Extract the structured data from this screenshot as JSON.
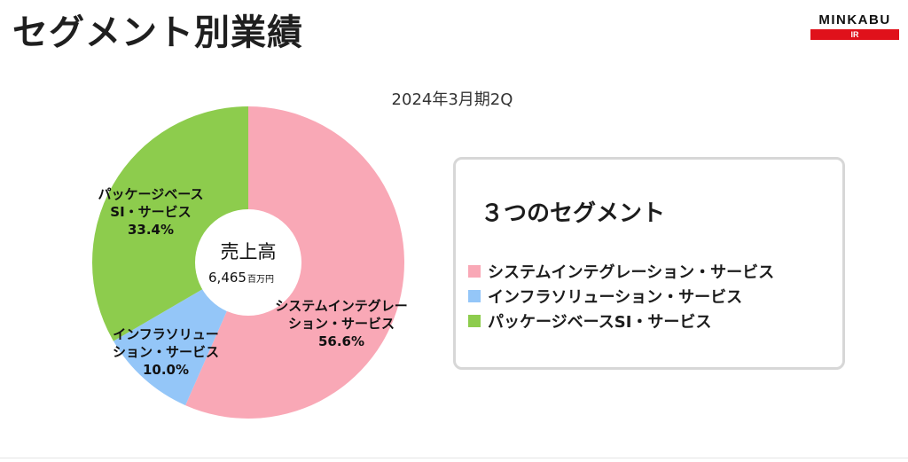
{
  "header": {
    "title": "セグメント別業績",
    "logo_text": "MINKABU",
    "logo_sub": "IR"
  },
  "chart_data": {
    "type": "pie",
    "style": "donut",
    "subtitle": "2024年3月期2Q",
    "center": {
      "title": "売上高",
      "value": "6,465",
      "unit": "百万円"
    },
    "slices": [
      {
        "label_lines": [
          "システムインテグレー",
          "ション・サービス"
        ],
        "value": 56.6,
        "value_label": "56.6%",
        "color": "#f9a8b6"
      },
      {
        "label_lines": [
          "インフラソリュー",
          "ション・サービス"
        ],
        "value": 10.0,
        "value_label": "10.0%",
        "color": "#94c6f8"
      },
      {
        "label_lines": [
          "パッケージベース",
          "SI・サービス"
        ],
        "value": 33.4,
        "value_label": "33.4%",
        "color": "#8dcc4d"
      }
    ]
  },
  "legend": {
    "title": "３つのセグメント",
    "items": [
      {
        "label": "システムインテグレーション・サービス",
        "color": "#f9a8b6"
      },
      {
        "label": "インフラソリューション・サービス",
        "color": "#94c6f8"
      },
      {
        "label": "パッケージベースSI・サービス",
        "color": "#8dcc4d"
      }
    ]
  }
}
